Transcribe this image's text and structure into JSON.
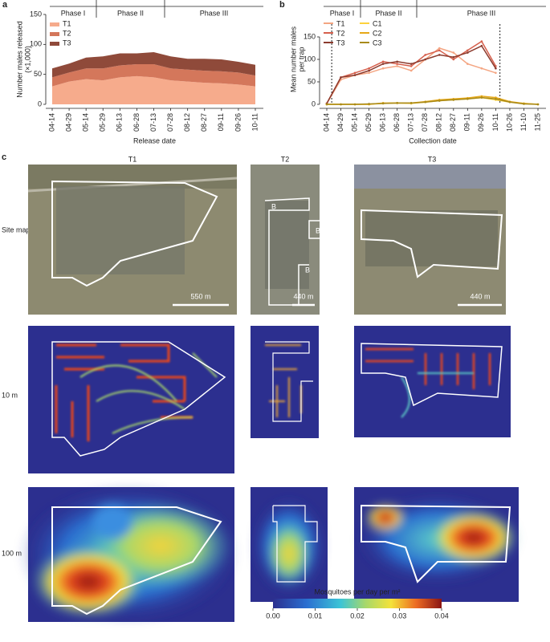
{
  "chart_data": [
    {
      "type": "area",
      "panel": "a",
      "y_label": [
        "Number males released",
        "(×1,000)"
      ],
      "x_label": "Release date",
      "annotations": [
        "Phase I",
        "Phase II",
        "Phase III"
      ],
      "categories": [
        "04-14",
        "04-29",
        "05-14",
        "05-29",
        "06-13",
        "06-28",
        "07-13",
        "07-28",
        "08-12",
        "08-27",
        "09-11",
        "09-26",
        "10-11"
      ],
      "series": [
        {
          "name": "T1",
          "color": "#f6ab8c",
          "values": [
            30,
            38,
            42,
            40,
            45,
            47,
            45,
            40,
            38,
            36,
            35,
            33,
            30
          ]
        },
        {
          "name": "T2",
          "color": "#d4775b",
          "values": [
            15,
            15,
            18,
            20,
            20,
            20,
            22,
            20,
            20,
            20,
            20,
            20,
            18
          ]
        },
        {
          "name": "T3",
          "color": "#8f4a3a",
          "values": [
            15,
            15,
            18,
            20,
            20,
            18,
            20,
            20,
            18,
            20,
            20,
            18,
            18
          ]
        }
      ],
      "ylim": [
        0,
        150
      ],
      "yticks": [
        0,
        50,
        100,
        150
      ],
      "legend": "upper-left"
    },
    {
      "type": "line",
      "panel": "b",
      "y_label": [
        "Mean number males",
        "per trap"
      ],
      "x_label": "Collection date",
      "annotations": [
        "Phase I",
        "Phase II",
        "Phase III"
      ],
      "categories": [
        "04-14",
        "04-29",
        "05-14",
        "05-29",
        "06-13",
        "06-28",
        "07-13",
        "07-28",
        "08-12",
        "08-27",
        "09-11",
        "09-26",
        "10-11",
        "10-26",
        "11-10",
        "11-25"
      ],
      "series": [
        {
          "name": "T1",
          "color": "#f4a582",
          "values": [
            2,
            55,
            65,
            70,
            80,
            85,
            75,
            100,
            125,
            115,
            90,
            80,
            70,
            null,
            null,
            null
          ]
        },
        {
          "name": "T2",
          "color": "#d6604d",
          "values": [
            2,
            60,
            70,
            80,
            95,
            90,
            85,
            110,
            120,
            100,
            120,
            140,
            85,
            null,
            null,
            null
          ]
        },
        {
          "name": "T3",
          "color": "#8c3b2e",
          "values": [
            2,
            60,
            65,
            75,
            90,
            95,
            90,
            100,
            110,
            105,
            115,
            130,
            80,
            null,
            null,
            null
          ]
        },
        {
          "name": "C1",
          "color": "#fdd23c",
          "values": [
            0,
            0,
            0,
            0,
            2,
            3,
            2,
            5,
            8,
            10,
            12,
            15,
            10,
            5,
            2,
            0
          ]
        },
        {
          "name": "C2",
          "color": "#e6a817",
          "values": [
            0,
            0,
            0,
            0,
            3,
            3,
            3,
            6,
            10,
            12,
            14,
            18,
            15,
            6,
            2,
            0
          ]
        },
        {
          "name": "C3",
          "color": "#a88a1a",
          "values": [
            0,
            0,
            0,
            1,
            2,
            3,
            3,
            5,
            8,
            10,
            12,
            15,
            12,
            5,
            1,
            0
          ]
        }
      ],
      "ylim": [
        0,
        200
      ],
      "yticks": [
        0,
        50,
        100,
        150
      ],
      "legend": "upper-left"
    }
  ],
  "panel_c": {
    "label": "c",
    "columns": [
      "T1",
      "T2",
      "T3"
    ],
    "rows": [
      "Site map",
      "10 m",
      "100 m"
    ],
    "scale_bars": [
      "550 m",
      "440 m",
      "440 m"
    ],
    "markers": [
      "B",
      "B",
      "B"
    ],
    "colorbar": {
      "title": "Mosquitoes per day per m²",
      "lim": [
        0,
        0.04
      ],
      "ticks": [
        {
          "value": 0,
          "label": "0.00"
        },
        0.01,
        0.02,
        0.03,
        0.04
      ]
    }
  }
}
